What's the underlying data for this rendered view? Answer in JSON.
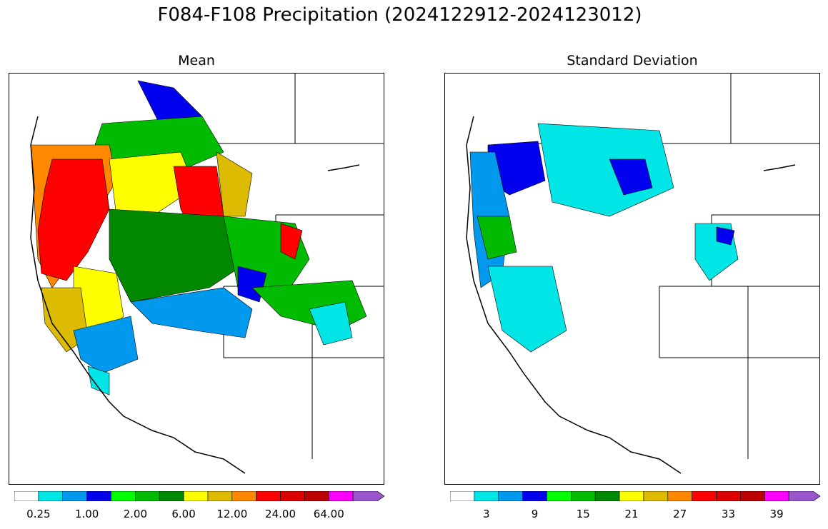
{
  "figure": {
    "title": "F084-F108 Precipitation (2024122912-2024123012)"
  },
  "panels": [
    {
      "id": "mean",
      "title": "Mean",
      "colorbar": {
        "colors": [
          "#ffffff",
          "#00e5e5",
          "#0099ee",
          "#0000ee",
          "#00ff00",
          "#00bb00",
          "#008800",
          "#ffff00",
          "#ddbb00",
          "#ff8800",
          "#ff0000",
          "#dd0000",
          "#bb0000",
          "#ff00ff",
          "#9955cc"
        ],
        "tick_labels": [
          "0.25",
          "1.00",
          "2.00",
          "6.00",
          "12.00",
          "24.00",
          "64.00"
        ],
        "label_boundary_index": [
          1,
          3,
          5,
          7,
          9,
          11,
          13
        ],
        "extend": "max"
      }
    },
    {
      "id": "std",
      "title": "Standard Deviation",
      "colorbar": {
        "colors": [
          "#ffffff",
          "#00e5e5",
          "#0099ee",
          "#0000ee",
          "#00ff00",
          "#00bb00",
          "#008800",
          "#ffff00",
          "#ddbb00",
          "#ff8800",
          "#ff0000",
          "#dd0000",
          "#bb0000",
          "#ff00ff",
          "#9955cc"
        ],
        "tick_labels": [
          "3",
          "9",
          "15",
          "21",
          "27",
          "33",
          "39"
        ],
        "label_boundary_index": [
          1.5,
          3.5,
          5.5,
          7.5,
          9.5,
          11.5,
          13.5
        ],
        "extend": "max"
      }
    }
  ],
  "map_description": {
    "region": "Western United States river basins",
    "color_regions_mean": [
      "red",
      "orange",
      "yellow",
      "green",
      "blue",
      "cyan"
    ],
    "color_regions_std": [
      "blue",
      "cyan",
      "green",
      "white"
    ]
  }
}
